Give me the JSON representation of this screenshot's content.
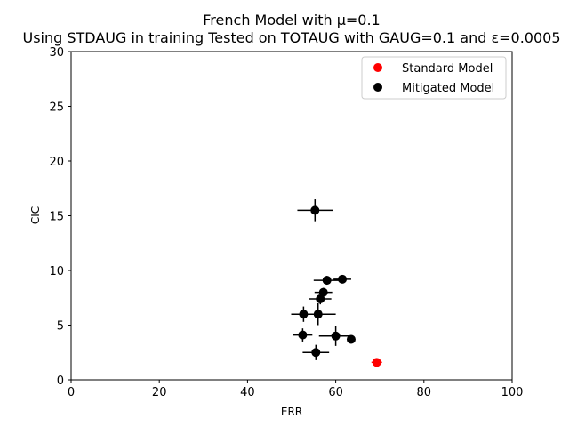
{
  "chart_data": {
    "type": "scatter",
    "title": "French Model with μ=0.1",
    "subtitle": "Using STDAUG in training Tested on TOTAUG with GAUG=0.1 and ε=0.0005",
    "xlabel": "ERR",
    "ylabel": "CIC",
    "xlim": [
      0,
      100
    ],
    "ylim": [
      0,
      30
    ],
    "xticks": [
      0,
      20,
      40,
      60,
      80,
      100
    ],
    "yticks": [
      0,
      5,
      10,
      15,
      20,
      25,
      30
    ],
    "xtick_labels": [
      "0",
      "20",
      "40",
      "60",
      "80",
      "100"
    ],
    "ytick_labels": [
      "0",
      "5",
      "10",
      "15",
      "20",
      "25",
      "30"
    ],
    "legend_position": "upper-right",
    "series": [
      {
        "name": "Standard Model",
        "color": "#ff0000",
        "points": [
          {
            "x": 69.3,
            "y": 1.6,
            "xerr": 1.2,
            "yerr": 0.2
          }
        ]
      },
      {
        "name": "Mitigated Model",
        "color": "#000000",
        "points": [
          {
            "x": 55.3,
            "y": 15.5,
            "xerr": 4.0,
            "yerr": 1.0
          },
          {
            "x": 61.5,
            "y": 9.2,
            "xerr": 2.0,
            "yerr": 0.3
          },
          {
            "x": 58.0,
            "y": 9.1,
            "xerr": 3.0,
            "yerr": 0.4
          },
          {
            "x": 57.2,
            "y": 8.0,
            "xerr": 2.0,
            "yerr": 0.4
          },
          {
            "x": 56.5,
            "y": 7.4,
            "xerr": 2.5,
            "yerr": 0.5
          },
          {
            "x": 52.7,
            "y": 6.0,
            "xerr": 2.8,
            "yerr": 0.7
          },
          {
            "x": 56.0,
            "y": 6.0,
            "xerr": 4.0,
            "yerr": 1.0
          },
          {
            "x": 52.5,
            "y": 4.1,
            "xerr": 2.2,
            "yerr": 0.6
          },
          {
            "x": 60.0,
            "y": 4.0,
            "xerr": 3.8,
            "yerr": 0.9
          },
          {
            "x": 63.5,
            "y": 3.7,
            "xerr": 0.6,
            "yerr": 0.2
          },
          {
            "x": 55.5,
            "y": 2.5,
            "xerr": 3.0,
            "yerr": 0.7
          }
        ]
      }
    ]
  }
}
